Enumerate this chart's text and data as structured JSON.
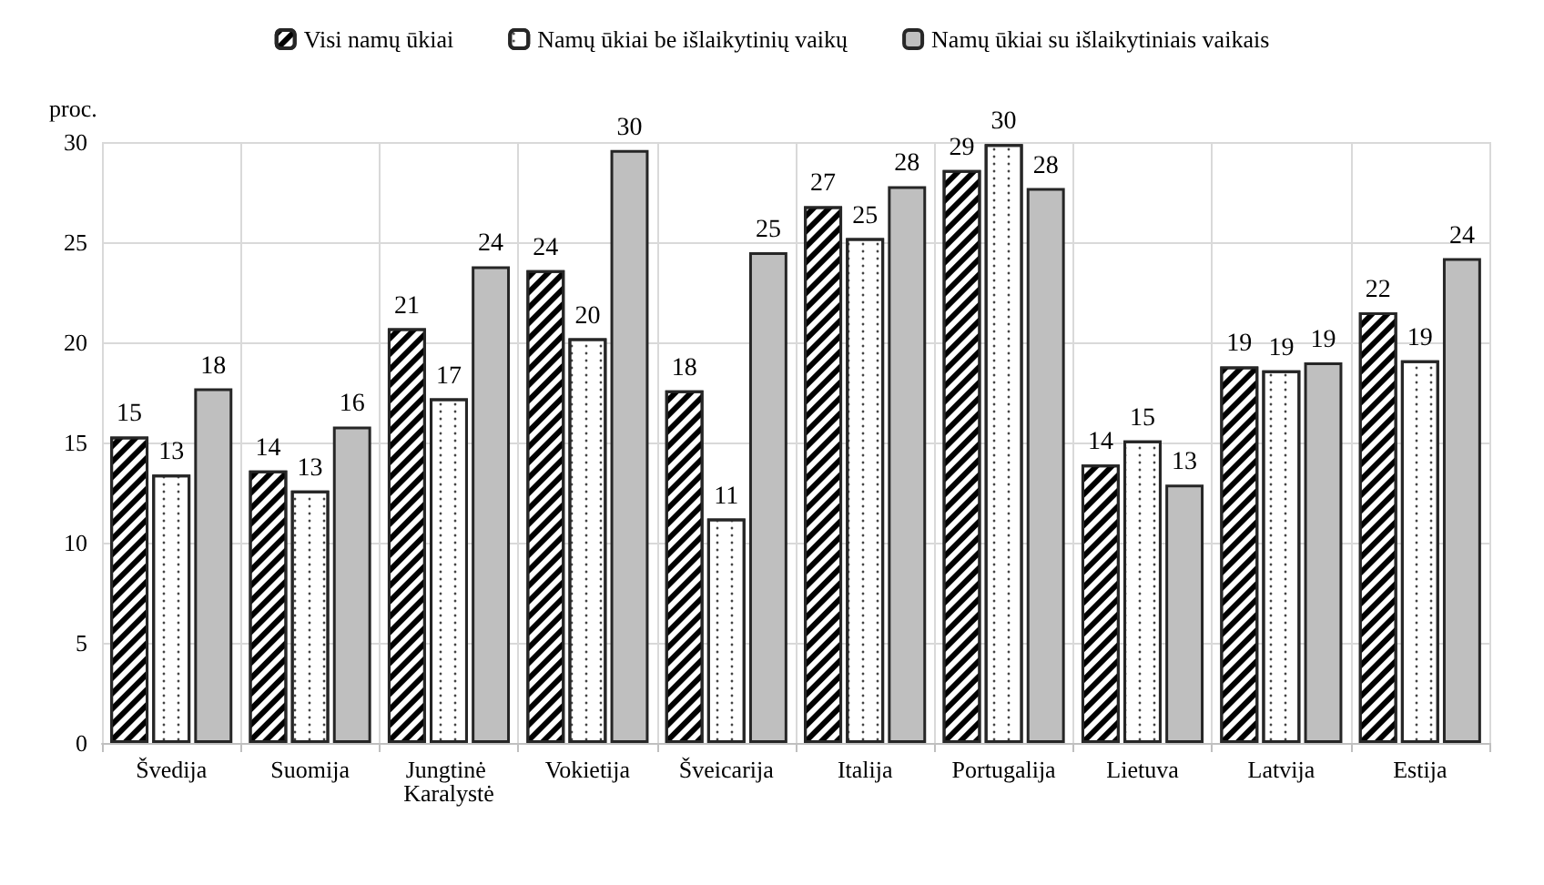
{
  "chart_data": {
    "type": "bar",
    "ylabel": "proc.",
    "categories": [
      "Švedija",
      "Suomija",
      "Jungtinė Karalystė",
      "Vokietija",
      "Šveicarija",
      "Italija",
      "Portugalija",
      "Lietuva",
      "Latvija",
      "Estija"
    ],
    "series": [
      {
        "name": "Visi namų ūkiai",
        "color": "#ffffff",
        "values": [
          15.3,
          13.6,
          20.7,
          23.6,
          17.6,
          26.8,
          28.6,
          13.9,
          18.8,
          21.5
        ],
        "value_labels": [
          "15",
          "14",
          "21",
          "24",
          "18",
          "27",
          "29",
          "14",
          "19",
          "22"
        ]
      },
      {
        "name": "Namų ūkiai be išlaikytinių vaikų",
        "color": "#ffffff",
        "values": [
          13.4,
          12.6,
          17.2,
          20.2,
          11.2,
          25.2,
          29.9,
          15.1,
          18.6,
          19.1
        ],
        "value_labels": [
          "13",
          "13",
          "17",
          "20",
          "11",
          "25",
          "30",
          "15",
          "19",
          "19"
        ]
      },
      {
        "name": "Namų ūkiai su išlaikytiniais vaikais",
        "color": "#bfbfbf",
        "values": [
          17.7,
          15.8,
          23.8,
          29.6,
          24.5,
          27.8,
          27.7,
          12.9,
          19.0,
          24.2
        ],
        "value_labels": [
          "18",
          "16",
          "24",
          "30",
          "25",
          "28",
          "28",
          "13",
          "19",
          "24"
        ]
      }
    ],
    "ylim": [
      0,
      30
    ],
    "yticks": [
      0,
      5,
      10,
      15,
      20,
      25,
      30
    ],
    "grid": true,
    "legend": "top"
  }
}
